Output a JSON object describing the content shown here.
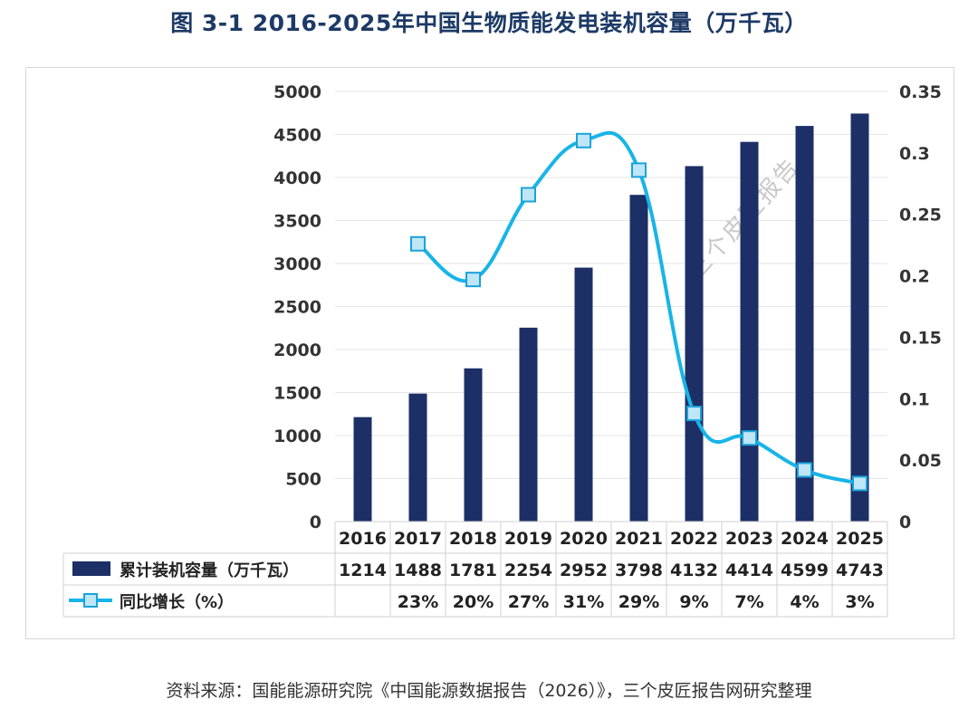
{
  "title": "图 3-1 2016-2025年中国生物质能发电装机容量（万千瓦）",
  "source": "资料来源：国能能源研究院《中国能源数据报告（2026）》，三个皮匠报告网研究整理",
  "watermark": "三个皮匠报告",
  "colors": {
    "bar": "#1c2f66",
    "line": "#18b4e8",
    "marker_fill": "#bfe6f7",
    "marker_stroke": "#1aa3d9"
  },
  "chart_data": {
    "type": "bar",
    "categories": [
      "2016",
      "2017",
      "2018",
      "2019",
      "2020",
      "2021",
      "2022",
      "2023",
      "2024",
      "2025"
    ],
    "series": [
      {
        "name": "累计装机容量（万千瓦）",
        "type": "bar",
        "axis": "left",
        "values": [
          1214,
          1488,
          1781,
          2254,
          2952,
          3798,
          4132,
          4414,
          4599,
          4743
        ],
        "labels": [
          "1214",
          "1488",
          "1781",
          "2254",
          "2952",
          "3798",
          "4132",
          "4414",
          "4599",
          "4743"
        ]
      },
      {
        "name": "同比增长（%）",
        "type": "line",
        "axis": "right",
        "values": [
          null,
          0.226,
          0.197,
          0.266,
          0.31,
          0.286,
          0.088,
          0.068,
          0.042,
          0.031
        ],
        "labels": [
          "",
          "23%",
          "20%",
          "27%",
          "31%",
          "29%",
          "9%",
          "7%",
          "4%",
          "3%"
        ]
      }
    ],
    "y_left": {
      "min": 0,
      "max": 5000,
      "ticks": [
        "0",
        "500",
        "1000",
        "1500",
        "2000",
        "2500",
        "3000",
        "3500",
        "4000",
        "4500",
        "5000"
      ]
    },
    "y_right": {
      "min": 0,
      "max": 0.35,
      "ticks": [
        "0",
        "0.05",
        "0.1",
        "0.15",
        "0.2",
        "0.25",
        "0.3",
        "0.35"
      ]
    },
    "grid": true,
    "legend": "data-table"
  }
}
